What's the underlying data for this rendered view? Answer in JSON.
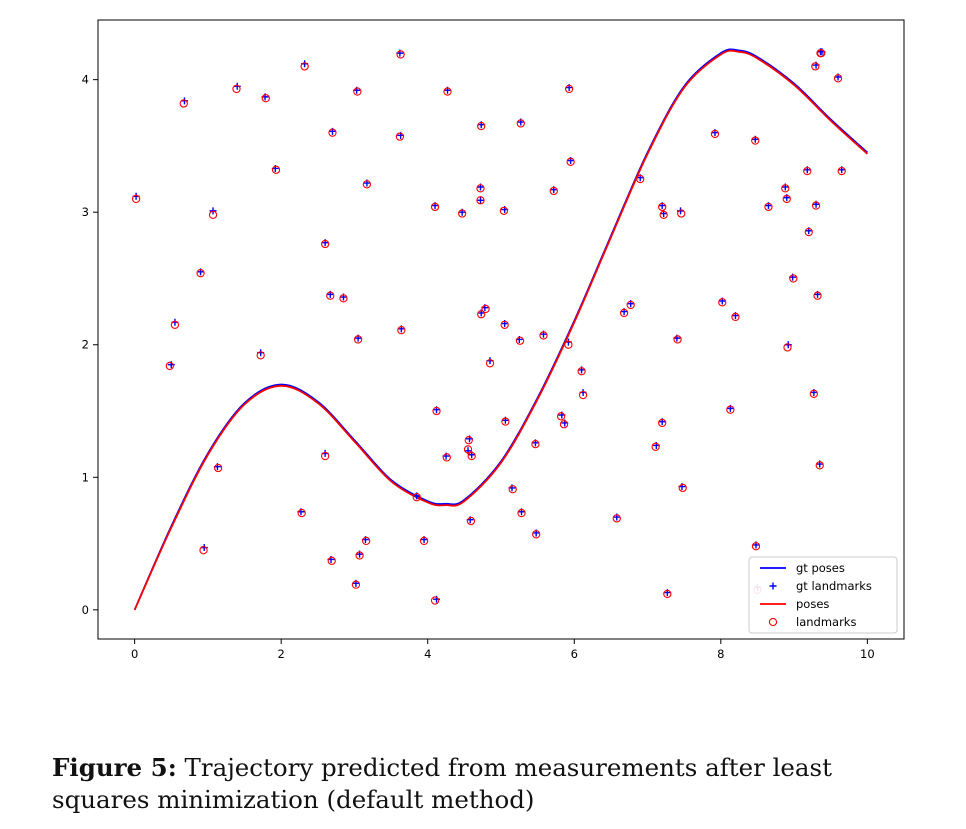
{
  "chart_data": {
    "type": "line",
    "title": "",
    "xlabel": "",
    "ylabel": "",
    "xlim": [
      -0.5,
      10.5
    ],
    "ylim": [
      -0.22,
      4.45
    ],
    "xticks": [
      "0",
      "2",
      "4",
      "6",
      "8",
      "10"
    ],
    "yticks": [
      "0",
      "1",
      "2",
      "3",
      "4"
    ],
    "grid": false,
    "legend_location": "lower right",
    "series": [
      {
        "name": "gt poses",
        "kind": "line",
        "color": "#0000ff",
        "x": [
          0,
          0.5,
          1,
          1.5,
          2,
          2.5,
          3,
          3.5,
          4,
          4.25,
          4.5,
          5,
          5.5,
          6,
          6.5,
          7,
          7.5,
          8,
          8.25,
          8.5,
          9,
          9.5,
          10
        ],
        "y": [
          0,
          0.63,
          1.18,
          1.56,
          1.7,
          1.57,
          1.28,
          0.98,
          0.82,
          0.8,
          0.83,
          1.12,
          1.6,
          2.18,
          2.82,
          3.45,
          3.95,
          4.2,
          4.22,
          4.17,
          3.97,
          3.7,
          3.45
        ]
      },
      {
        "name": "gt landmarks",
        "kind": "scatter",
        "marker": "+",
        "color": "#0000ff",
        "x": [
          0.02,
          0.5,
          0.55,
          0.68,
          0.9,
          0.95,
          1.07,
          1.13,
          1.4,
          1.72,
          1.78,
          1.92,
          2.27,
          2.32,
          2.6,
          2.6,
          2.67,
          2.68,
          2.7,
          2.85,
          3.02,
          3.03,
          3.05,
          3.07,
          3.15,
          3.17,
          3.62,
          3.63,
          3.64,
          3.85,
          3.95,
          4.1,
          4.12,
          4.12,
          4.25,
          4.27,
          4.47,
          4.55,
          4.57,
          4.58,
          4.6,
          4.72,
          4.72,
          4.73,
          4.73,
          4.78,
          4.85,
          5.05,
          5.05,
          5.06,
          5.15,
          5.25,
          5.27,
          5.28,
          5.47,
          5.48,
          5.58,
          5.72,
          5.83,
          5.87,
          5.92,
          5.93,
          5.95,
          6.1,
          6.12,
          6.58,
          6.68,
          6.77,
          6.9,
          7.12,
          7.2,
          7.2,
          7.22,
          7.27,
          7.4,
          7.45,
          7.47,
          7.92,
          8.02,
          8.13,
          8.2,
          8.47,
          8.48,
          8.5,
          8.65,
          8.88,
          8.9,
          8.92,
          8.98,
          9.18,
          9.2,
          9.27,
          9.3,
          9.3,
          9.32,
          9.35,
          9.36,
          9.38,
          9.6,
          9.65
        ],
        "y": [
          3.12,
          1.85,
          2.17,
          3.84,
          2.55,
          0.47,
          3.01,
          1.08,
          3.95,
          1.94,
          3.87,
          3.33,
          0.74,
          4.12,
          2.77,
          1.18,
          2.38,
          0.38,
          3.61,
          2.36,
          0.2,
          3.92,
          2.05,
          0.42,
          0.53,
          3.22,
          4.2,
          3.58,
          2.12,
          0.86,
          0.53,
          3.05,
          0.08,
          1.51,
          1.16,
          3.92,
          3.0,
          1.2,
          1.29,
          0.68,
          1.17,
          3.09,
          3.19,
          3.66,
          2.24,
          2.28,
          1.88,
          3.02,
          2.16,
          1.43,
          0.92,
          2.04,
          3.68,
          0.74,
          1.26,
          0.58,
          2.08,
          3.17,
          1.47,
          1.41,
          2.02,
          3.94,
          3.39,
          1.81,
          1.64,
          0.7,
          2.25,
          2.31,
          3.26,
          1.24,
          3.05,
          1.42,
          2.99,
          0.13,
          2.05,
          3.01,
          0.93,
          3.6,
          2.33,
          1.52,
          2.22,
          3.55,
          0.49,
          0.17,
          3.05,
          3.19,
          3.11,
          2.0,
          2.51,
          3.32,
          2.86,
          1.64,
          4.11,
          3.06,
          2.38,
          1.1,
          4.21,
          4.21,
          4.02,
          3.32
        ]
      },
      {
        "name": "poses",
        "kind": "line",
        "color": "#ff0000",
        "x": [
          0,
          0.5,
          1,
          1.5,
          2,
          2.5,
          3,
          3.5,
          4,
          4.25,
          4.5,
          5,
          5.5,
          6,
          6.5,
          7,
          7.5,
          8,
          8.25,
          8.5,
          9,
          9.5,
          10
        ],
        "y": [
          0,
          0.62,
          1.17,
          1.55,
          1.69,
          1.56,
          1.27,
          0.97,
          0.81,
          0.79,
          0.82,
          1.11,
          1.59,
          2.17,
          2.81,
          3.44,
          3.94,
          4.19,
          4.21,
          4.16,
          3.96,
          3.69,
          3.44
        ]
      },
      {
        "name": "landmarks",
        "kind": "scatter",
        "marker": "o",
        "color": "#ff0000",
        "x": [
          0.02,
          0.48,
          0.55,
          0.67,
          0.9,
          0.94,
          1.07,
          1.14,
          1.39,
          1.72,
          1.79,
          1.93,
          2.28,
          2.32,
          2.6,
          2.6,
          2.67,
          2.69,
          2.7,
          2.85,
          3.02,
          3.04,
          3.05,
          3.07,
          3.16,
          3.17,
          3.63,
          3.62,
          3.64,
          3.85,
          3.95,
          4.1,
          4.1,
          4.12,
          4.26,
          4.27,
          4.47,
          4.55,
          4.56,
          4.59,
          4.6,
          4.72,
          4.72,
          4.73,
          4.73,
          4.79,
          4.85,
          5.04,
          5.05,
          5.06,
          5.16,
          5.26,
          5.27,
          5.28,
          5.47,
          5.48,
          5.58,
          5.72,
          5.82,
          5.86,
          5.92,
          5.93,
          5.95,
          6.1,
          6.12,
          6.58,
          6.68,
          6.77,
          6.9,
          7.11,
          7.2,
          7.2,
          7.22,
          7.27,
          7.41,
          7.46,
          7.48,
          7.92,
          8.02,
          8.13,
          8.2,
          8.47,
          8.48,
          8.5,
          8.65,
          8.88,
          8.9,
          8.91,
          8.99,
          9.18,
          9.2,
          9.27,
          9.29,
          9.3,
          9.32,
          9.35,
          9.36,
          9.37,
          9.6,
          9.65
        ],
        "y": [
          3.1,
          1.84,
          2.15,
          3.82,
          2.54,
          0.45,
          2.98,
          1.07,
          3.93,
          1.92,
          3.86,
          3.32,
          0.73,
          4.1,
          2.76,
          1.16,
          2.37,
          0.37,
          3.6,
          2.35,
          0.19,
          3.91,
          2.04,
          0.41,
          0.52,
          3.21,
          4.19,
          3.57,
          2.11,
          0.85,
          0.52,
          3.04,
          0.07,
          1.5,
          1.15,
          3.91,
          2.99,
          1.21,
          1.28,
          0.67,
          1.16,
          3.09,
          3.18,
          3.65,
          2.23,
          2.27,
          1.86,
          3.01,
          2.15,
          1.42,
          0.91,
          2.03,
          3.67,
          0.73,
          1.25,
          0.57,
          2.07,
          3.16,
          1.46,
          1.4,
          2.0,
          3.93,
          3.38,
          1.8,
          1.62,
          0.69,
          2.24,
          2.3,
          3.25,
          1.23,
          3.04,
          1.41,
          2.98,
          0.12,
          2.04,
          2.99,
          0.92,
          3.59,
          2.32,
          1.51,
          2.21,
          3.54,
          0.48,
          0.15,
          3.04,
          3.18,
          3.1,
          1.98,
          2.5,
          3.31,
          2.85,
          1.63,
          4.1,
          3.05,
          2.37,
          1.09,
          4.2,
          4.2,
          4.01,
          3.31
        ]
      }
    ]
  },
  "caption": {
    "label": "Figure 5:",
    "text": " Trajectory predicted from measurements after least squares minimization (default method)"
  }
}
